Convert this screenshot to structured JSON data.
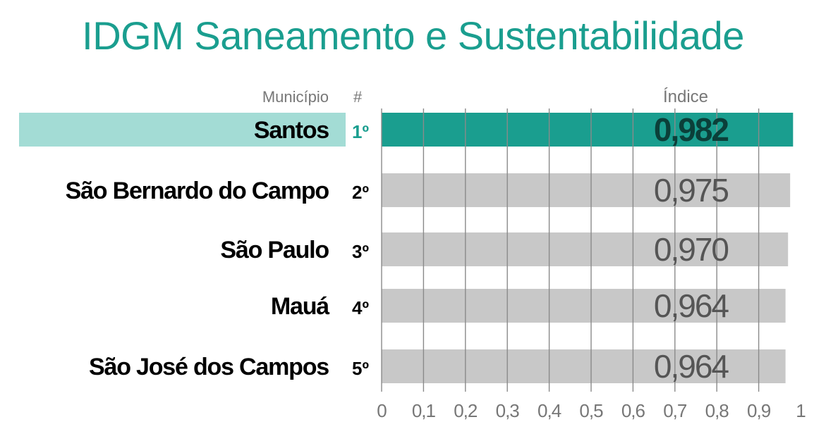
{
  "title": "IDGM Saneamento e Sustentabilidade",
  "colors": {
    "title": "#1a9e8f",
    "highlight_bar": "#1a9e8f",
    "highlight_label_bg": "#a3dcd5",
    "highlight_value_text": "#0b3f39",
    "bar": "#c8c8c8",
    "grid": "#8a8a8a",
    "header_text": "#777777",
    "value_text": "#555555",
    "label_text": "#000000"
  },
  "chart_data": {
    "type": "bar",
    "orientation": "horizontal",
    "headers": {
      "municipio": "Município",
      "rank": "#",
      "indice": "Índice"
    },
    "categories": [
      "Santos",
      "São Bernardo do Campo",
      "São Paulo",
      "Mauá",
      "São José dos Campos"
    ],
    "ranks": [
      "1º",
      "2º",
      "3º",
      "4º",
      "5º"
    ],
    "values": [
      0.982,
      0.975,
      0.97,
      0.964,
      0.964
    ],
    "value_labels": [
      "0,982",
      "0,975",
      "0,970",
      "0,964",
      "0,964"
    ],
    "highlight_index": 0,
    "xlim": [
      0,
      1
    ],
    "xticks": [
      0,
      0.1,
      0.2,
      0.3,
      0.4,
      0.5,
      0.6,
      0.7,
      0.8,
      0.9,
      1
    ],
    "xtick_labels": [
      "0",
      "0,1",
      "0,2",
      "0,3",
      "0,4",
      "0,5",
      "0,6",
      "0,7",
      "0,8",
      "0,9",
      "1"
    ],
    "grid": true
  }
}
